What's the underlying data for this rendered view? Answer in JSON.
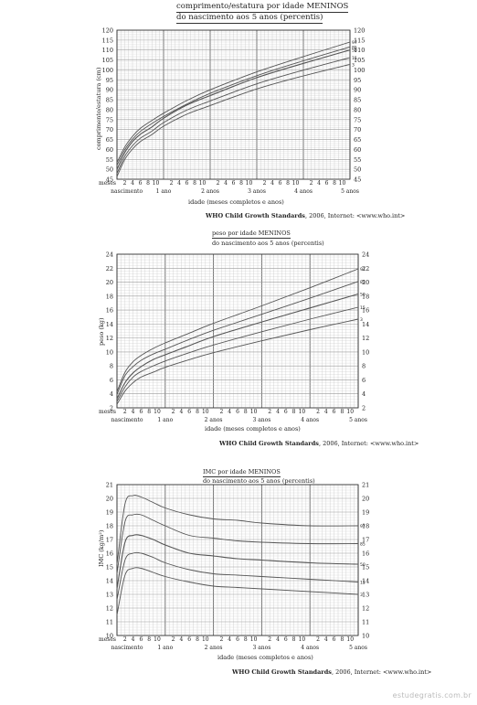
{
  "charts": [
    {
      "title_line1": "comprimento/estatura por idade MENINOS",
      "title_line2": "do nascimento aos 5 anos (percentis)",
      "ylabel": "comprimento/estatura (cm)",
      "xlabel": "idade (meses completos e anos)",
      "source_bold": "WHO Child Growth Standards",
      "source_rest": ", 2006, Internet: <www.who.int>"
    },
    {
      "title_line1": "peso por idade MENINOS",
      "title_line2": "do nascimento aos 5 anos (percentis)",
      "ylabel": "peso (kg)",
      "xlabel": "idade (meses completos e anos)",
      "source_bold": "WHO Child Growth Standards",
      "source_rest": ", 2006, Internet: <www.who.int>"
    },
    {
      "title_line1": "IMC por idade MENINOS",
      "title_line2": "do nascimento aos 5 anos (percentis)",
      "ylabel": "IMC (kg/m²)",
      "xlabel": "idade (meses completos e anos)",
      "source_bold": "WHO Child Growth Standards",
      "source_rest": ", 2006, Internet: <www.who.int>"
    }
  ],
  "axis_common": {
    "meses_label": "meses",
    "month_ticks": [
      "2",
      "4",
      "6",
      "8",
      "10"
    ],
    "period_labels": [
      "nascimento",
      "1 ano",
      "2 anos",
      "3 anos",
      "4 anos",
      "5 anos"
    ]
  },
  "watermark": "estudegratis.com.br",
  "colors": {
    "grid": "#c9c9c9",
    "grid_major": "#666666",
    "curve": "#555555"
  },
  "chart_data": [
    {
      "type": "line",
      "title": "comprimento/estatura por idade MENINOS",
      "xlabel": "idade (meses completos e anos)",
      "ylabel": "comprimento/estatura (cm)",
      "x_unit": "meses",
      "xlim": [
        0,
        60
      ],
      "ylim": [
        45,
        120
      ],
      "yticks": [
        45,
        50,
        55,
        60,
        65,
        70,
        75,
        80,
        85,
        90,
        95,
        100,
        105,
        110,
        115,
        120
      ],
      "x": [
        0,
        2,
        4,
        6,
        9,
        12,
        18,
        24,
        36,
        48,
        60
      ],
      "series": [
        {
          "name": "97",
          "values": [
            53.4,
            61.2,
            66.6,
            70.6,
            74.6,
            78.2,
            84.6,
            90.0,
            99.0,
            106.7,
            114.0
          ]
        },
        {
          "name": "85",
          "values": [
            52.0,
            59.8,
            65.1,
            69.0,
            73.0,
            76.6,
            82.8,
            88.2,
            97.1,
            104.6,
            111.6
          ]
        },
        {
          "name": "50",
          "values": [
            49.9,
            58.4,
            63.9,
            67.6,
            71.3,
            75.7,
            82.3,
            87.1,
            96.1,
            103.3,
            110.0
          ]
        },
        {
          "name": "15",
          "values": [
            47.9,
            56.5,
            61.9,
            65.6,
            69.2,
            73.5,
            79.8,
            84.4,
            93.0,
            99.9,
            106.2
          ]
        },
        {
          "name": "3",
          "values": [
            46.3,
            54.9,
            60.2,
            63.9,
            67.5,
            71.7,
            77.7,
            82.1,
            90.4,
            97.0,
            102.8
          ]
        }
      ]
    },
    {
      "type": "line",
      "title": "peso por idade MENINOS",
      "xlabel": "idade (meses completos e anos)",
      "ylabel": "peso (kg)",
      "x_unit": "meses",
      "xlim": [
        0,
        60
      ],
      "ylim": [
        2,
        24
      ],
      "yticks": [
        2,
        4,
        6,
        8,
        10,
        12,
        14,
        16,
        18,
        20,
        22,
        24
      ],
      "x": [
        0,
        2,
        4,
        6,
        9,
        12,
        18,
        24,
        36,
        48,
        60
      ],
      "series": [
        {
          "name": "97",
          "values": [
            4.3,
            7.1,
            8.6,
            9.5,
            10.5,
            11.3,
            12.7,
            14.1,
            16.6,
            19.2,
            21.9
          ]
        },
        {
          "name": "85",
          "values": [
            3.9,
            6.6,
            7.9,
            8.8,
            9.7,
            10.4,
            11.8,
            13.1,
            15.4,
            17.7,
            20.1
          ]
        },
        {
          "name": "50",
          "values": [
            3.3,
            5.6,
            7.0,
            7.9,
            8.9,
            9.6,
            10.9,
            12.2,
            14.3,
            16.3,
            18.3
          ]
        },
        {
          "name": "15",
          "values": [
            2.9,
            5.0,
            6.4,
            7.2,
            8.0,
            8.7,
            9.9,
            11.0,
            12.9,
            14.7,
            16.4
          ]
        },
        {
          "name": "3",
          "values": [
            2.5,
            4.4,
            5.6,
            6.4,
            7.1,
            7.8,
            8.9,
            9.9,
            11.6,
            13.2,
            14.7
          ]
        }
      ]
    },
    {
      "type": "line",
      "title": "IMC por idade MENINOS",
      "xlabel": "idade (meses completos e anos)",
      "ylabel": "IMC (kg/m²)",
      "x_unit": "meses",
      "xlim": [
        0,
        60
      ],
      "ylim": [
        10,
        21
      ],
      "yticks": [
        10,
        11,
        12,
        13,
        14,
        15,
        16,
        17,
        18,
        19,
        20,
        21
      ],
      "x": [
        0,
        2,
        4,
        6,
        9,
        12,
        18,
        24,
        30,
        36,
        48,
        60
      ],
      "series": [
        {
          "name": "97",
          "values": [
            15.2,
            19.6,
            20.2,
            20.1,
            19.7,
            19.3,
            18.8,
            18.5,
            18.4,
            18.2,
            18.0,
            18.0
          ]
        },
        {
          "name": "85",
          "values": [
            14.5,
            18.3,
            18.8,
            18.8,
            18.4,
            18.0,
            17.3,
            17.1,
            16.9,
            16.8,
            16.7,
            16.7
          ]
        },
        {
          "name": "50",
          "values": [
            13.4,
            16.8,
            17.3,
            17.3,
            17.0,
            16.6,
            16.0,
            15.8,
            15.6,
            15.5,
            15.3,
            15.2
          ]
        },
        {
          "name": "15",
          "values": [
            12.6,
            15.5,
            16.0,
            16.0,
            15.7,
            15.3,
            14.8,
            14.5,
            14.4,
            14.3,
            14.1,
            13.9
          ]
        },
        {
          "name": "3",
          "values": [
            11.5,
            14.4,
            14.9,
            14.9,
            14.6,
            14.3,
            13.9,
            13.6,
            13.5,
            13.4,
            13.2,
            13.0
          ]
        }
      ]
    }
  ]
}
